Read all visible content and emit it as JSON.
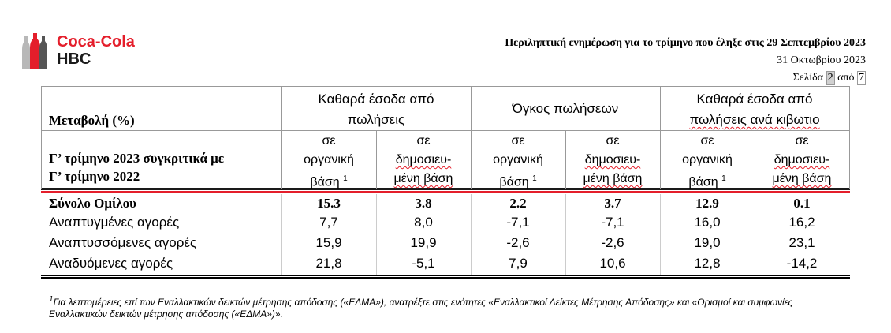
{
  "logo": {
    "line1": "Coca-Cola",
    "line2": "HBC"
  },
  "header": {
    "title": "Περιληπτική ενημέρωση για το τρίμηνο που έληξε στις 29 Σεπτεμβρίου 2023",
    "date": "31 Οκτωβρίου 2023",
    "page_label": "Σελίδα",
    "page_current": "2",
    "page_of": "από",
    "page_total": "7"
  },
  "table": {
    "change_label": "Μεταβολή (%)",
    "period_label_line1": "Γ’ τρίμηνο 2023 συγκριτικά με",
    "period_label_line2": "Γ’ τρίμηνο 2022",
    "groups": [
      {
        "line1": "Καθαρά έσοδα από",
        "line2": "πωλήσεις"
      },
      {
        "line1": "Όγκος πωλήσεων",
        "line2": ""
      },
      {
        "line1": "Καθαρά έσοδα από",
        "line2": "πωλήσεις ανά κιβωτιο"
      }
    ],
    "sub_organic": {
      "l1": "σε",
      "l2": "οργανική",
      "l3": "βάση",
      "sup": "1"
    },
    "sub_reported": {
      "l1": "σε",
      "l2": "δημοσιευ-",
      "l3": "μένη βάση"
    },
    "rows": [
      {
        "label": "Σύνολο Ομίλου",
        "bold": true,
        "values": [
          "15.3",
          "3.8",
          "2.2",
          "3.7",
          "12.9",
          "0.1"
        ]
      },
      {
        "label": "Αναπτυγμένες αγορές",
        "bold": false,
        "values": [
          "7,7",
          "8,0",
          "-7,1",
          "-7,1",
          "16,0",
          "16,2"
        ]
      },
      {
        "label": "Αναπτυσσόμενες αγορές",
        "bold": false,
        "values": [
          "15,9",
          "19,9",
          "-2,6",
          "-2,6",
          "19,0",
          "23,1"
        ]
      },
      {
        "label": "Αναδυόμενες αγορές",
        "bold": false,
        "values": [
          "21,8",
          "-5,1",
          "7,9",
          "10,6",
          "12,8",
          "-14,2"
        ]
      }
    ]
  },
  "footnote": {
    "sup": "1",
    "line1": "Για λεπτομέρειες επί των Εναλλακτικών δεικτών μέτρησης απόδοσης («ΕΔΜΑ»), ανατρέξτε στις ενότητες «Εναλλακτικοί Δείκτες Μέτρησης Απόδοσης» και «Ορισμοί και συμφωνίες",
    "line2": "Εναλλακτικών δεικτών μέτρησης απόδοσης («ΕΔΜΑ»)»."
  },
  "colors": {
    "brand_red": "#e41e2b"
  }
}
